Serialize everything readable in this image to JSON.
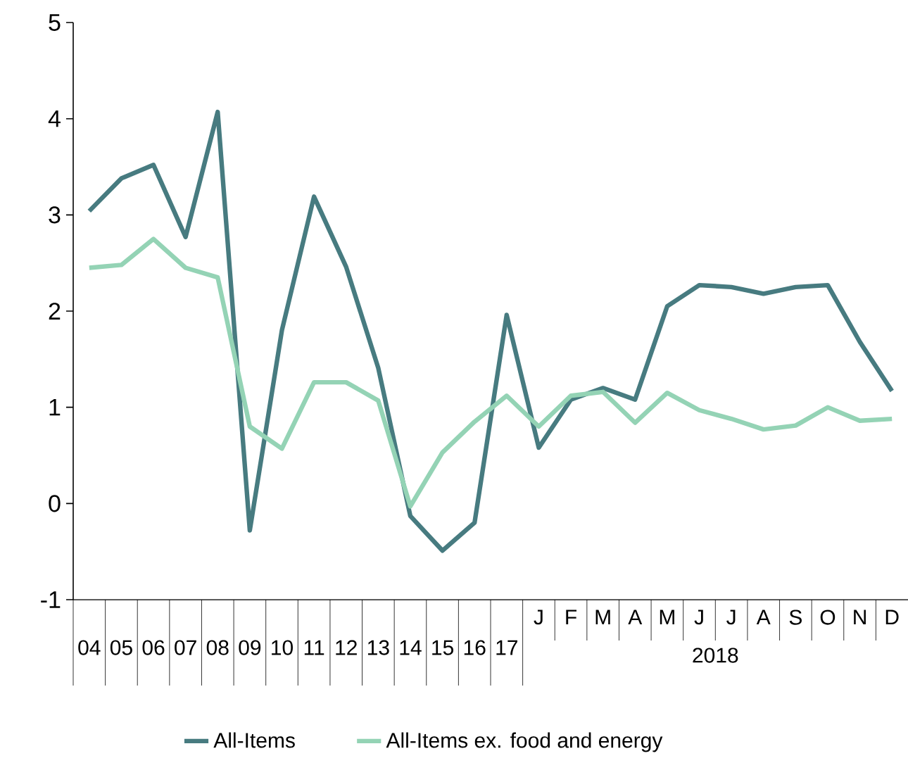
{
  "chart_data": {
    "type": "line",
    "xlabel": "2018",
    "categories": [
      "04",
      "05",
      "06",
      "07",
      "08",
      "09",
      "10",
      "11",
      "12",
      "13",
      "14",
      "15",
      "16",
      "17",
      "J",
      "F",
      "M",
      "A",
      "M",
      "J",
      "J",
      "A",
      "S",
      "O",
      "N",
      "D"
    ],
    "ylim": [
      -1,
      5
    ],
    "yticks": [
      -1,
      0,
      1,
      2,
      3,
      4,
      5
    ],
    "grid": false,
    "legend": "bottom",
    "line_style": "solid",
    "series": [
      {
        "name": "All-Items",
        "color": "#477b80",
        "values": [
          3.04,
          3.38,
          3.52,
          2.77,
          4.07,
          -0.28,
          1.8,
          3.19,
          2.46,
          1.41,
          -0.13,
          -0.49,
          -0.2,
          1.96,
          0.58,
          1.08,
          1.2,
          1.08,
          2.05,
          2.27,
          2.25,
          2.18,
          2.25,
          2.27,
          1.68,
          1.17
        ]
      },
      {
        "name": "All-Items ex. food and energy",
        "color": "#94d3b5",
        "values": [
          2.45,
          2.48,
          2.75,
          2.45,
          2.35,
          0.8,
          0.57,
          1.26,
          1.26,
          1.07,
          -0.03,
          0.53,
          0.85,
          1.12,
          0.8,
          1.12,
          1.16,
          0.84,
          1.15,
          0.97,
          0.88,
          0.77,
          0.81,
          1.0,
          0.86,
          0.88
        ]
      }
    ]
  }
}
